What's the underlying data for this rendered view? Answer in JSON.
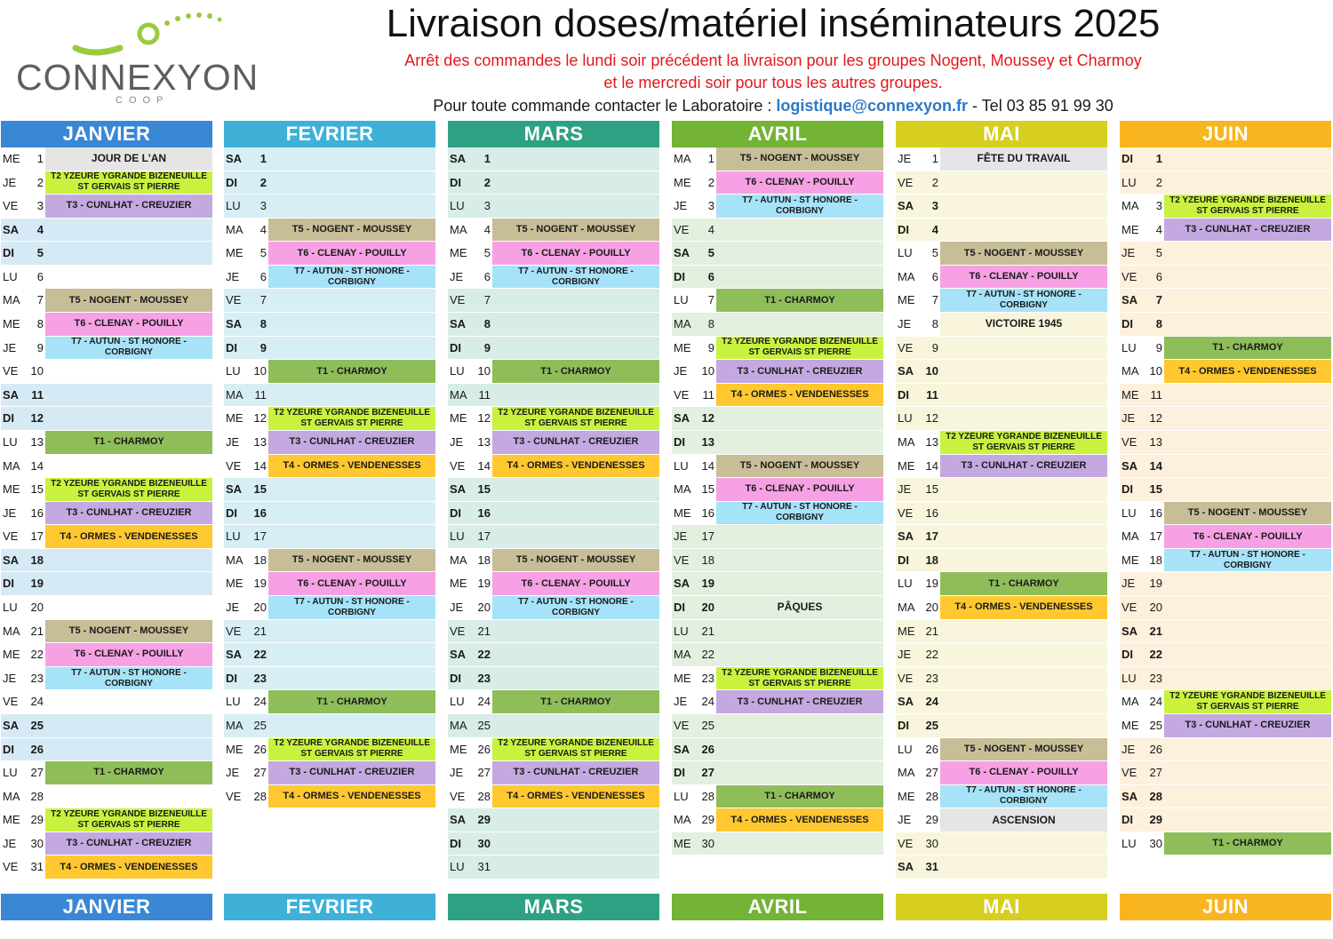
{
  "header": {
    "title": "Livraison doses/matériel inséminateurs 2025",
    "note_line1": "Arrêt des commandes le lundi soir précédent la livraison pour les groupes Nogent, Moussey et Charmoy",
    "note_line2": "et le mercredi soir pour tous les autres groupes.",
    "contact_prefix": "Pour toute commande contacter le Laboratoire :",
    "contact_email": "logistique@connexyon.fr",
    "contact_tel": "- Tel 03 85 91 99 30"
  },
  "logo": {
    "name": "CONNEXYON",
    "sub": "COOP",
    "icon": "connexyon-swirl-logo"
  },
  "colors": {
    "T1": "#8fbd5a",
    "T2": "#c8f23d",
    "T3": "#c4a8e0",
    "T4": "#ffc830",
    "T5": "#c7bd97",
    "T6": "#f6a1e4",
    "T7": "#a6e2f8",
    "holiday": "#e5e5e5"
  },
  "months": [
    {
      "name": "JANVIER",
      "header_color": "#3a87d5",
      "tint": "#d6eaf6",
      "start": "ME",
      "days": 31,
      "events": {
        "1": "HOL:JOUR DE L'AN",
        "2": "T2",
        "3": "T3",
        "7": "T5",
        "8": "T6",
        "9": "T7",
        "13": "T1",
        "15": "T2",
        "16": "T3",
        "17": "T4",
        "21": "T5",
        "22": "T6",
        "23": "T7",
        "27": "T1",
        "29": "T2",
        "30": "T3",
        "31": "T4"
      }
    },
    {
      "name": "FEVRIER",
      "header_color": "#3fb0d8",
      "tint": "#d7eef4",
      "start": "SA",
      "days": 28,
      "events": {
        "4": "T5",
        "5": "T6",
        "6": "T7",
        "10": "T1",
        "12": "T2",
        "13": "T3",
        "14": "T4",
        "18": "T5",
        "19": "T6",
        "20": "T7",
        "24": "T1",
        "26": "T2",
        "27": "T3",
        "28": "T4"
      }
    },
    {
      "name": "MARS",
      "header_color": "#2fa183",
      "tint": "#d8ede7",
      "start": "SA",
      "days": 31,
      "events": {
        "4": "T5",
        "5": "T6",
        "6": "T7",
        "10": "T1",
        "12": "T2",
        "13": "T3",
        "14": "T4",
        "18": "T5",
        "19": "T6",
        "20": "T7",
        "24": "T1",
        "26": "T2",
        "27": "T3",
        "28": "T4"
      }
    },
    {
      "name": "AVRIL",
      "header_color": "#73b335",
      "tint": "#e3efdf",
      "start": "MA",
      "days": 30,
      "events": {
        "1": "T5",
        "2": "T6",
        "3": "T7",
        "7": "T1",
        "9": "T2",
        "10": "T3",
        "11": "T4",
        "14": "T5",
        "15": "T6",
        "16": "T7",
        "20": "TXT:PÂQUES",
        "23": "T2",
        "24": "T3",
        "26": "",
        "28": "T1",
        "29": "T4"
      }
    },
    {
      "name": "MAI",
      "header_color": "#d6cf20",
      "tint": "#f8f5dc",
      "start": "JE",
      "days": 31,
      "events": {
        "1": "HOL:FÊTE DU TRAVAIL",
        "5": "T5",
        "6": "T6",
        "7": "T7",
        "8": "TXT:VICTOIRE 1945",
        "13": "T2",
        "14": "T3",
        "19": "T1",
        "20": "T4",
        "26": "T5",
        "27": "T6",
        "28": "T7",
        "29": "HOL:ASCENSION"
      }
    },
    {
      "name": "JUIN",
      "header_color": "#f9b51f",
      "tint": "#fdf0dc",
      "start": "DI",
      "days": 30,
      "events": {
        "3": "T2",
        "4": "T3",
        "9": "T1",
        "10": "T4",
        "16": "T5",
        "17": "T6",
        "18": "T7",
        "24": "T2",
        "25": "T3",
        "30": "T1"
      }
    }
  ],
  "labels": {
    "T1": [
      "T1 - CHARMOY"
    ],
    "T2": [
      "T2 YZEURE YGRANDE BIZENEUILLE",
      "ST GERVAIS ST PIERRE"
    ],
    "T3": [
      "T3 - CUNLHAT - CREUZIER"
    ],
    "T4": [
      "T4 - ORMES - VENDENESSES"
    ],
    "T5": [
      "T5 - NOGENT - MOUSSEY"
    ],
    "T6": [
      "T6 - CLENAY - POUILLY"
    ],
    "T7": [
      "T7 - AUTUN - ST HONORE -",
      "CORBIGNY"
    ]
  },
  "weekdays": [
    "LU",
    "MA",
    "ME",
    "JE",
    "VE",
    "SA",
    "DI"
  ]
}
